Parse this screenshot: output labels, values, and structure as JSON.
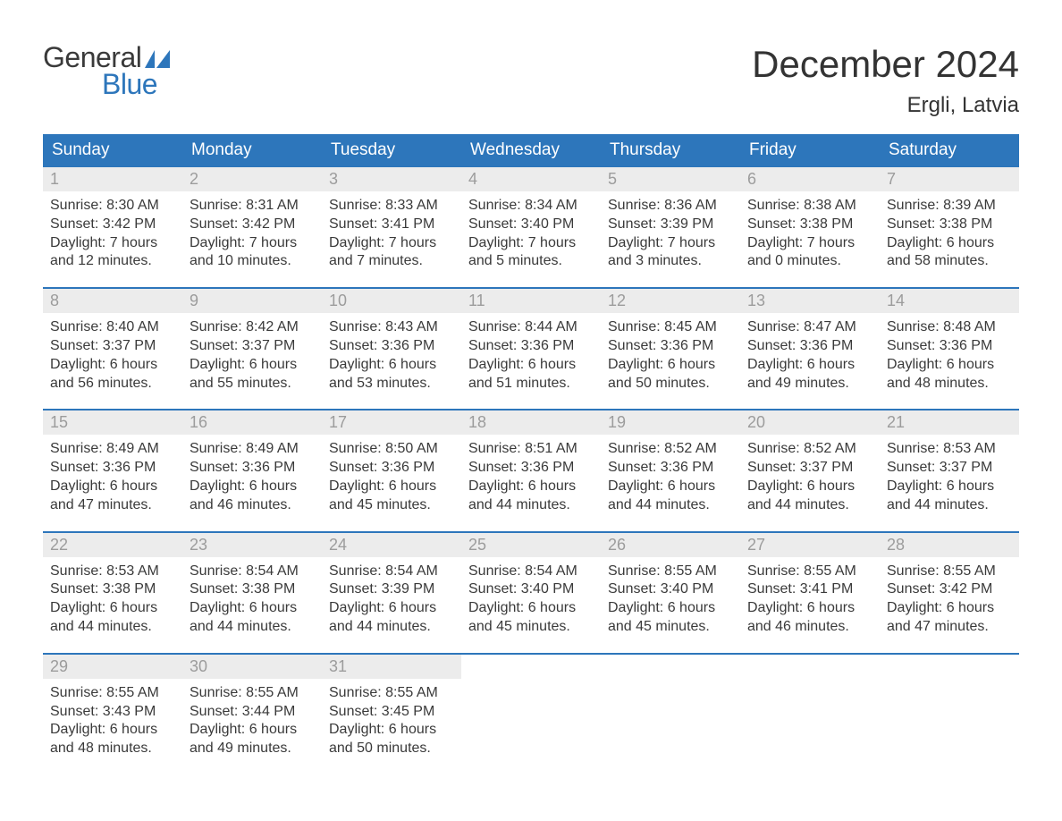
{
  "brand": {
    "word1": "General",
    "word2": "Blue"
  },
  "title": "December 2024",
  "location": "Ergli, Latvia",
  "colors": {
    "header_bg": "#2d76bb",
    "header_text": "#ffffff",
    "accent": "#2d76bb",
    "daynum_bg": "#ececec",
    "daynum_text": "#9c9c9c",
    "body_text": "#3a3a3a",
    "page_bg": "#ffffff"
  },
  "typography": {
    "title_fontsize": 42,
    "location_fontsize": 24,
    "header_fontsize": 19,
    "daynum_fontsize": 18,
    "body_fontsize": 16
  },
  "columns": [
    "Sunday",
    "Monday",
    "Tuesday",
    "Wednesday",
    "Thursday",
    "Friday",
    "Saturday"
  ],
  "weeks": [
    [
      {
        "n": "1",
        "sunrise": "Sunrise: 8:30 AM",
        "sunset": "Sunset: 3:42 PM",
        "d1": "Daylight: 7 hours",
        "d2": "and 12 minutes."
      },
      {
        "n": "2",
        "sunrise": "Sunrise: 8:31 AM",
        "sunset": "Sunset: 3:42 PM",
        "d1": "Daylight: 7 hours",
        "d2": "and 10 minutes."
      },
      {
        "n": "3",
        "sunrise": "Sunrise: 8:33 AM",
        "sunset": "Sunset: 3:41 PM",
        "d1": "Daylight: 7 hours",
        "d2": "and 7 minutes."
      },
      {
        "n": "4",
        "sunrise": "Sunrise: 8:34 AM",
        "sunset": "Sunset: 3:40 PM",
        "d1": "Daylight: 7 hours",
        "d2": "and 5 minutes."
      },
      {
        "n": "5",
        "sunrise": "Sunrise: 8:36 AM",
        "sunset": "Sunset: 3:39 PM",
        "d1": "Daylight: 7 hours",
        "d2": "and 3 minutes."
      },
      {
        "n": "6",
        "sunrise": "Sunrise: 8:38 AM",
        "sunset": "Sunset: 3:38 PM",
        "d1": "Daylight: 7 hours",
        "d2": "and 0 minutes."
      },
      {
        "n": "7",
        "sunrise": "Sunrise: 8:39 AM",
        "sunset": "Sunset: 3:38 PM",
        "d1": "Daylight: 6 hours",
        "d2": "and 58 minutes."
      }
    ],
    [
      {
        "n": "8",
        "sunrise": "Sunrise: 8:40 AM",
        "sunset": "Sunset: 3:37 PM",
        "d1": "Daylight: 6 hours",
        "d2": "and 56 minutes."
      },
      {
        "n": "9",
        "sunrise": "Sunrise: 8:42 AM",
        "sunset": "Sunset: 3:37 PM",
        "d1": "Daylight: 6 hours",
        "d2": "and 55 minutes."
      },
      {
        "n": "10",
        "sunrise": "Sunrise: 8:43 AM",
        "sunset": "Sunset: 3:36 PM",
        "d1": "Daylight: 6 hours",
        "d2": "and 53 minutes."
      },
      {
        "n": "11",
        "sunrise": "Sunrise: 8:44 AM",
        "sunset": "Sunset: 3:36 PM",
        "d1": "Daylight: 6 hours",
        "d2": "and 51 minutes."
      },
      {
        "n": "12",
        "sunrise": "Sunrise: 8:45 AM",
        "sunset": "Sunset: 3:36 PM",
        "d1": "Daylight: 6 hours",
        "d2": "and 50 minutes."
      },
      {
        "n": "13",
        "sunrise": "Sunrise: 8:47 AM",
        "sunset": "Sunset: 3:36 PM",
        "d1": "Daylight: 6 hours",
        "d2": "and 49 minutes."
      },
      {
        "n": "14",
        "sunrise": "Sunrise: 8:48 AM",
        "sunset": "Sunset: 3:36 PM",
        "d1": "Daylight: 6 hours",
        "d2": "and 48 minutes."
      }
    ],
    [
      {
        "n": "15",
        "sunrise": "Sunrise: 8:49 AM",
        "sunset": "Sunset: 3:36 PM",
        "d1": "Daylight: 6 hours",
        "d2": "and 47 minutes."
      },
      {
        "n": "16",
        "sunrise": "Sunrise: 8:49 AM",
        "sunset": "Sunset: 3:36 PM",
        "d1": "Daylight: 6 hours",
        "d2": "and 46 minutes."
      },
      {
        "n": "17",
        "sunrise": "Sunrise: 8:50 AM",
        "sunset": "Sunset: 3:36 PM",
        "d1": "Daylight: 6 hours",
        "d2": "and 45 minutes."
      },
      {
        "n": "18",
        "sunrise": "Sunrise: 8:51 AM",
        "sunset": "Sunset: 3:36 PM",
        "d1": "Daylight: 6 hours",
        "d2": "and 44 minutes."
      },
      {
        "n": "19",
        "sunrise": "Sunrise: 8:52 AM",
        "sunset": "Sunset: 3:36 PM",
        "d1": "Daylight: 6 hours",
        "d2": "and 44 minutes."
      },
      {
        "n": "20",
        "sunrise": "Sunrise: 8:52 AM",
        "sunset": "Sunset: 3:37 PM",
        "d1": "Daylight: 6 hours",
        "d2": "and 44 minutes."
      },
      {
        "n": "21",
        "sunrise": "Sunrise: 8:53 AM",
        "sunset": "Sunset: 3:37 PM",
        "d1": "Daylight: 6 hours",
        "d2": "and 44 minutes."
      }
    ],
    [
      {
        "n": "22",
        "sunrise": "Sunrise: 8:53 AM",
        "sunset": "Sunset: 3:38 PM",
        "d1": "Daylight: 6 hours",
        "d2": "and 44 minutes."
      },
      {
        "n": "23",
        "sunrise": "Sunrise: 8:54 AM",
        "sunset": "Sunset: 3:38 PM",
        "d1": "Daylight: 6 hours",
        "d2": "and 44 minutes."
      },
      {
        "n": "24",
        "sunrise": "Sunrise: 8:54 AM",
        "sunset": "Sunset: 3:39 PM",
        "d1": "Daylight: 6 hours",
        "d2": "and 44 minutes."
      },
      {
        "n": "25",
        "sunrise": "Sunrise: 8:54 AM",
        "sunset": "Sunset: 3:40 PM",
        "d1": "Daylight: 6 hours",
        "d2": "and 45 minutes."
      },
      {
        "n": "26",
        "sunrise": "Sunrise: 8:55 AM",
        "sunset": "Sunset: 3:40 PM",
        "d1": "Daylight: 6 hours",
        "d2": "and 45 minutes."
      },
      {
        "n": "27",
        "sunrise": "Sunrise: 8:55 AM",
        "sunset": "Sunset: 3:41 PM",
        "d1": "Daylight: 6 hours",
        "d2": "and 46 minutes."
      },
      {
        "n": "28",
        "sunrise": "Sunrise: 8:55 AM",
        "sunset": "Sunset: 3:42 PM",
        "d1": "Daylight: 6 hours",
        "d2": "and 47 minutes."
      }
    ],
    [
      {
        "n": "29",
        "sunrise": "Sunrise: 8:55 AM",
        "sunset": "Sunset: 3:43 PM",
        "d1": "Daylight: 6 hours",
        "d2": "and 48 minutes."
      },
      {
        "n": "30",
        "sunrise": "Sunrise: 8:55 AM",
        "sunset": "Sunset: 3:44 PM",
        "d1": "Daylight: 6 hours",
        "d2": "and 49 minutes."
      },
      {
        "n": "31",
        "sunrise": "Sunrise: 8:55 AM",
        "sunset": "Sunset: 3:45 PM",
        "d1": "Daylight: 6 hours",
        "d2": "and 50 minutes."
      },
      null,
      null,
      null,
      null
    ]
  ]
}
